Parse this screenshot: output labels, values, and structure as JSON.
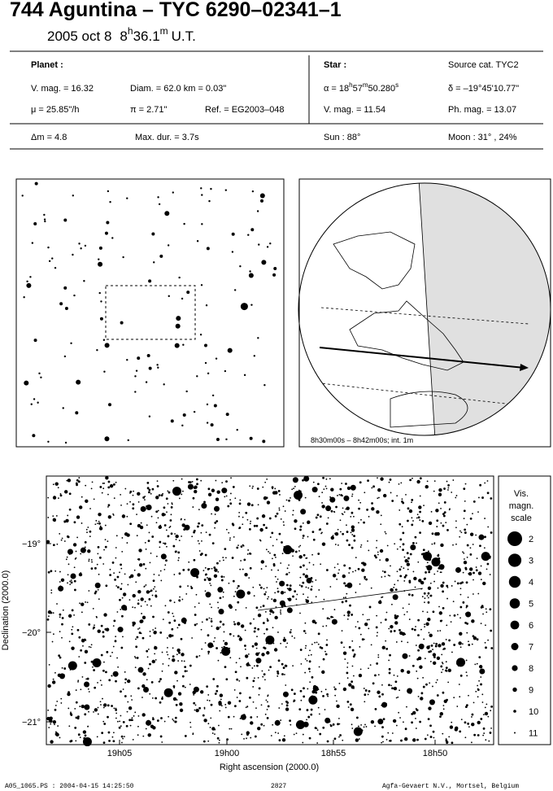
{
  "header": {
    "title": "744 Aguntina  –  TYC 6290–02341–1",
    "date": "2005 oct  8",
    "hours": "8",
    "h": "h",
    "minutes": "36.1",
    "m": "m",
    "ut": "U.T."
  },
  "planet": {
    "label": "Planet :",
    "vmag": "V. mag. = 16.32",
    "diam": "Diam. = 62.0 km = 0.03\"",
    "mu": "μ =  25.85\"/h",
    "pi": "π =  2.71\"",
    "ref": "Ref. = EG2003–048",
    "dm": "Δm = 4.8",
    "maxdur": "Max. dur. = 3.7s"
  },
  "star": {
    "label": "Star :",
    "source": "Source cat.  TYC2",
    "alpha": {
      "a": "α = 18",
      "h": "h",
      "b": "57",
      "m": "m",
      "c": "50.280",
      "s": "s"
    },
    "delta": "δ = –19°45'10.77\"",
    "vmag": "V. mag. = 11.54",
    "phmag": "Ph. mag. = 13.07",
    "sun": "Sun :  88°",
    "moon": "Moon :  31° , 24%"
  },
  "globe": {
    "caption": "8h30m00s –  8h42m00s; int.  1m"
  },
  "chart": {
    "yticks": [
      "−19°",
      "−20°",
      "−21°"
    ],
    "xticks": [
      "19h05",
      "19h00",
      "18h55",
      "18h50"
    ],
    "xlabel": "Right ascension (2000.0)",
    "ylabel": "Declination (2000.0)",
    "legend": {
      "title": [
        "Vis.",
        "magn.",
        "scale"
      ],
      "mags": [
        "2",
        "3",
        "4",
        "5",
        "6",
        "7",
        "8",
        "9",
        "10",
        "11"
      ]
    }
  },
  "footer": {
    "left": "A05_1065.PS : 2004-04-15 14:25:50",
    "center": "2827",
    "right": "Agfa-Gevaert N.V., Mortsel, Belgium"
  }
}
